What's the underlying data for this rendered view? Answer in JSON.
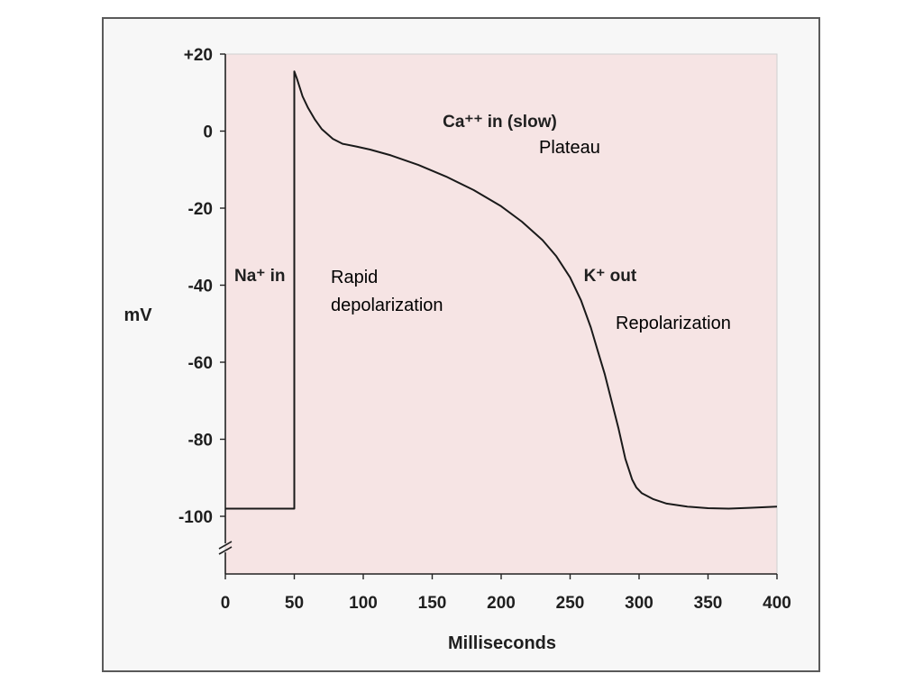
{
  "colors": {
    "plot_background": "#f6e4e4",
    "curve": "#1a1a1a",
    "axis": "#222222"
  },
  "chart_data": {
    "type": "line",
    "xlabel": "Milliseconds",
    "ylabel": "mV",
    "xlim": [
      0,
      400
    ],
    "ylim": [
      -112,
      20
    ],
    "y_axis_break": true,
    "grid": false,
    "x_ticks": [
      {
        "value": 0,
        "label": "0"
      },
      {
        "value": 50,
        "label": "50"
      },
      {
        "value": 100,
        "label": "100"
      },
      {
        "value": 150,
        "label": "150"
      },
      {
        "value": 200,
        "label": "200"
      },
      {
        "value": 250,
        "label": "250"
      },
      {
        "value": 300,
        "label": "300"
      },
      {
        "value": 350,
        "label": "350"
      },
      {
        "value": 400,
        "label": "400"
      }
    ],
    "y_ticks": [
      {
        "value": 20,
        "label": "+20"
      },
      {
        "value": 0,
        "label": "0"
      },
      {
        "value": -20,
        "label": "-20"
      },
      {
        "value": -40,
        "label": "-40"
      },
      {
        "value": -60,
        "label": "-60"
      },
      {
        "value": -80,
        "label": "-80"
      },
      {
        "value": -100,
        "label": "-100"
      }
    ],
    "series": [
      {
        "x": [
          0,
          50,
          50,
          52,
          56,
          60,
          65,
          70,
          78,
          85,
          95,
          105,
          120,
          140,
          160,
          180,
          200,
          215,
          230,
          240,
          250,
          258,
          265,
          270,
          275,
          280,
          285,
          290,
          295,
          298,
          302,
          310,
          320,
          335,
          350,
          365,
          380,
          400
        ],
        "y": [
          -98,
          -98,
          15.5,
          13.5,
          9,
          6,
          3,
          0.5,
          -2,
          -3.3,
          -4,
          -4.8,
          -6.3,
          -8.8,
          -11.8,
          -15.3,
          -19.5,
          -23.5,
          -28.3,
          -32.5,
          -38,
          -44,
          -51,
          -57,
          -63,
          -70,
          -77,
          -85,
          -90.5,
          -92.5,
          -94,
          -95.5,
          -96.7,
          -97.5,
          -97.9,
          -98,
          -97.8,
          -97.5
        ]
      }
    ],
    "annotations": [
      {
        "text": "Na⁺ in",
        "x": 25,
        "y": -39
      },
      {
        "text": "Ca⁺⁺ in (slow)",
        "x": 199,
        "y": 1
      },
      {
        "text": "K⁺ out",
        "x": 279,
        "y": -39
      }
    ]
  },
  "overlay_labels": {
    "rapid_line1": "Rapid",
    "rapid_line2": "depolarization",
    "plateau": "Plateau",
    "repolarization": "Repolarization"
  }
}
